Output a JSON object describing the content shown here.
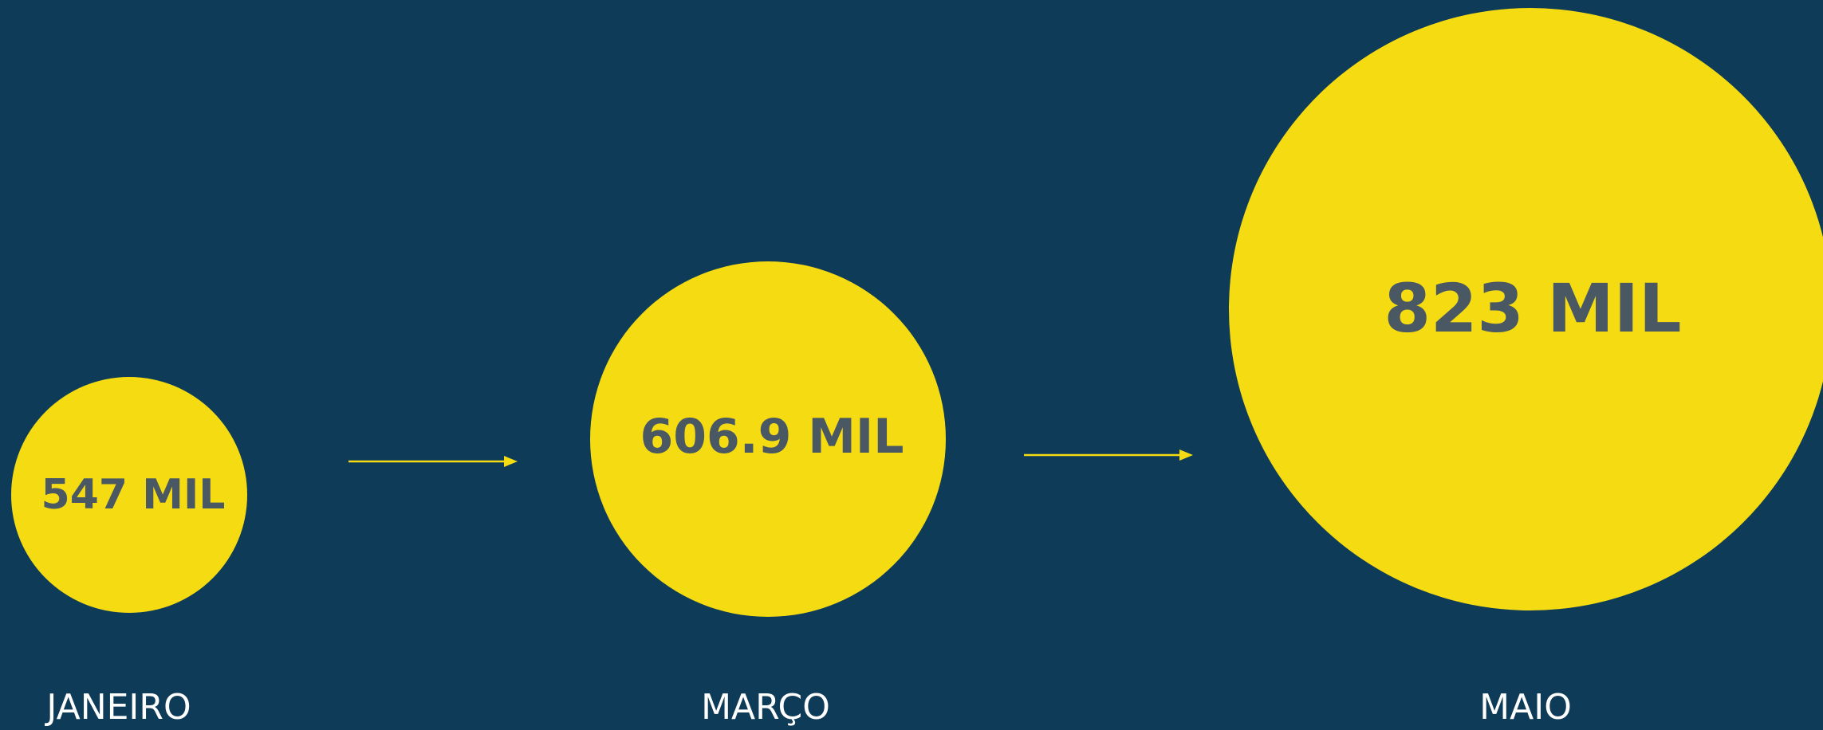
{
  "theme": {
    "background": "#0d3b58",
    "accent": "#f5dc12",
    "value_text_color": "#4a5863",
    "month_text_color": "#ffffff"
  },
  "stages": [
    {
      "month": "JANEIRO",
      "value_label": "547 MIL",
      "value": 547000
    },
    {
      "month": "MARÇO",
      "value_label": "606.9 MIL",
      "value": 606900
    },
    {
      "month": "MAIO",
      "value_label": "823 MIL",
      "value": 823000
    }
  ],
  "connectors": [
    "arrow-right-icon",
    "arrow-right-icon"
  ]
}
